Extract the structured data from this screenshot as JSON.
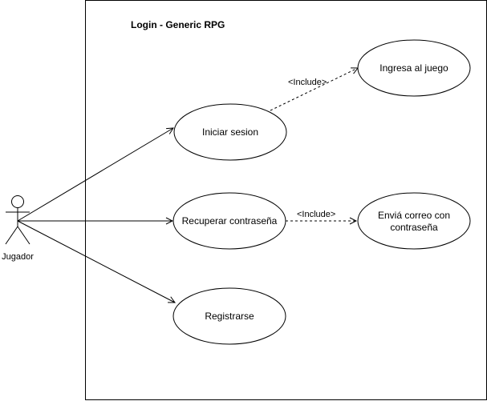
{
  "system": {
    "title": "Login - Generic RPG"
  },
  "actor": {
    "name": "Jugador"
  },
  "use_cases": {
    "iniciar": "Iniciar sesion",
    "recuperar": "Recuperar contraseña",
    "registrarse": "Registrarse",
    "ingresa": "Ingresa al juego",
    "envia_line1": "Enviá correo con",
    "envia_line2": "contraseña"
  },
  "relations": {
    "include_1": "<Include>",
    "include_2": "<Include>"
  },
  "colors": {
    "stroke": "#000000",
    "fill": "#ffffff"
  }
}
